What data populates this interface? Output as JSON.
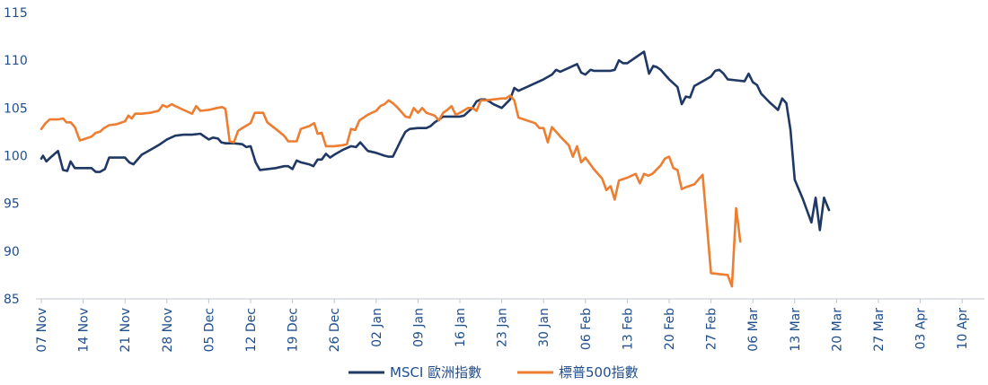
{
  "chart_data": {
    "type": "line",
    "title": "",
    "xlabel": "",
    "ylabel": "",
    "ylim": [
      85,
      115
    ],
    "yticks": [
      85,
      90,
      95,
      100,
      105,
      110,
      115
    ],
    "grid": false,
    "legend_position": "bottom-center",
    "x_tick_labels": [
      "07 Nov",
      "14 Nov",
      "21 Nov",
      "28 Nov",
      "05 Dec",
      "12 Dec",
      "19 Dec",
      "26 Dec",
      "02 Jan",
      "09 Jan",
      "16 Jan",
      "23 Jan",
      "30 Jan",
      "06 Feb",
      "13 Feb",
      "20 Feb",
      "27 Feb",
      "06 Mar",
      "13 Mar",
      "20 Mar",
      "27 Mar",
      "03 Apr",
      "10 Apr"
    ],
    "series": [
      {
        "name": "MSCI 歐洲指數",
        "color": "#1f3864",
        "points": [
          [
            0,
            99.7
          ],
          [
            0.2,
            100.0
          ],
          [
            0.6,
            99.4
          ],
          [
            1.2,
            99.9
          ],
          [
            2.0,
            100.5
          ],
          [
            2.6,
            98.5
          ],
          [
            3.1,
            98.4
          ],
          [
            3.5,
            99.4
          ],
          [
            4.0,
            98.7
          ],
          [
            5.0,
            98.7
          ],
          [
            6.0,
            98.7
          ],
          [
            6.5,
            98.3
          ],
          [
            7.0,
            98.3
          ],
          [
            7.6,
            98.6
          ],
          [
            8.1,
            99.8
          ],
          [
            8.9,
            99.8
          ],
          [
            10.0,
            99.8
          ],
          [
            10.5,
            99.3
          ],
          [
            11.0,
            99.1
          ],
          [
            12.0,
            100.1
          ],
          [
            13.0,
            100.6
          ],
          [
            14.0,
            101.1
          ],
          [
            15.0,
            101.7
          ],
          [
            16.0,
            102.1
          ],
          [
            17.0,
            102.2
          ],
          [
            18.0,
            102.2
          ],
          [
            19.0,
            102.3
          ],
          [
            20.0,
            101.7
          ],
          [
            20.5,
            101.9
          ],
          [
            21.1,
            101.8
          ],
          [
            21.5,
            101.4
          ],
          [
            22.0,
            101.3
          ],
          [
            23.0,
            101.3
          ],
          [
            24.0,
            101.2
          ],
          [
            24.5,
            100.9
          ],
          [
            25.0,
            101.0
          ],
          [
            25.6,
            99.3
          ],
          [
            26.1,
            98.5
          ],
          [
            27.0,
            98.6
          ],
          [
            28.0,
            98.7
          ],
          [
            29.0,
            98.9
          ],
          [
            29.5,
            98.9
          ],
          [
            30.0,
            98.6
          ],
          [
            30.5,
            99.5
          ],
          [
            31.0,
            99.3
          ],
          [
            32.0,
            99.1
          ],
          [
            32.5,
            98.9
          ],
          [
            33.0,
            99.6
          ],
          [
            33.5,
            99.6
          ],
          [
            34.0,
            100.2
          ],
          [
            34.5,
            99.8
          ],
          [
            35.0,
            100.1
          ],
          [
            36.0,
            100.6
          ],
          [
            37.0,
            101.0
          ],
          [
            37.6,
            100.9
          ],
          [
            38.1,
            101.4
          ],
          [
            39.0,
            100.5
          ],
          [
            40.0,
            100.3
          ],
          [
            41.0,
            100.0
          ],
          [
            41.5,
            99.9
          ],
          [
            42.0,
            99.9
          ],
          [
            43.0,
            101.7
          ],
          [
            43.5,
            102.5
          ],
          [
            44.0,
            102.8
          ],
          [
            45.0,
            102.9
          ],
          [
            46.0,
            102.9
          ],
          [
            46.5,
            103.1
          ],
          [
            47.0,
            103.5
          ],
          [
            48.0,
            104.1
          ],
          [
            49.0,
            104.1
          ],
          [
            50.0,
            104.1
          ],
          [
            50.5,
            104.2
          ],
          [
            51.0,
            104.6
          ],
          [
            51.5,
            105.0
          ],
          [
            52.0,
            105.7
          ],
          [
            52.5,
            105.9
          ],
          [
            53.0,
            105.9
          ],
          [
            53.5,
            105.7
          ],
          [
            54.0,
            105.4
          ],
          [
            55.0,
            105.0
          ],
          [
            56.0,
            105.9
          ],
          [
            56.5,
            107.1
          ],
          [
            57.0,
            106.8
          ],
          [
            58.0,
            107.2
          ],
          [
            59.0,
            107.6
          ],
          [
            60.0,
            108.0
          ],
          [
            61.0,
            108.5
          ],
          [
            61.5,
            109.0
          ],
          [
            62.0,
            108.8
          ],
          [
            63.0,
            109.2
          ],
          [
            64.0,
            109.6
          ],
          [
            64.5,
            108.7
          ],
          [
            65.0,
            108.5
          ],
          [
            65.6,
            109.0
          ],
          [
            66.0,
            108.9
          ],
          [
            67.0,
            108.9
          ],
          [
            68.0,
            108.9
          ],
          [
            68.5,
            109.0
          ],
          [
            69.0,
            110.0
          ],
          [
            69.5,
            109.7
          ],
          [
            70.0,
            109.7
          ],
          [
            71.0,
            110.3
          ],
          [
            72.0,
            110.9
          ],
          [
            72.6,
            108.6
          ],
          [
            73.1,
            109.4
          ],
          [
            73.5,
            109.3
          ],
          [
            74.0,
            109.0
          ],
          [
            74.5,
            108.5
          ],
          [
            75.0,
            108.0
          ],
          [
            76.0,
            107.2
          ],
          [
            76.5,
            105.4
          ],
          [
            77.0,
            106.2
          ],
          [
            77.5,
            106.1
          ],
          [
            78.0,
            107.3
          ],
          [
            79.0,
            107.8
          ],
          [
            80.0,
            108.3
          ],
          [
            80.5,
            108.9
          ],
          [
            81.0,
            109.0
          ],
          [
            81.5,
            108.6
          ],
          [
            82.0,
            108.0
          ],
          [
            83.0,
            107.9
          ],
          [
            84.0,
            107.8
          ],
          [
            84.5,
            108.6
          ],
          [
            85.0,
            107.7
          ],
          [
            85.5,
            107.4
          ],
          [
            86.0,
            106.5
          ],
          [
            87.0,
            105.6
          ],
          [
            87.5,
            105.2
          ],
          [
            88.0,
            104.8
          ],
          [
            88.5,
            106.0
          ],
          [
            89.0,
            105.5
          ],
          [
            89.5,
            102.7
          ],
          [
            90.0,
            97.5
          ],
          [
            91.0,
            95.4
          ],
          [
            92.0,
            93.0
          ],
          [
            92.5,
            95.6
          ],
          [
            93.0,
            92.2
          ],
          [
            93.5,
            95.6
          ],
          [
            94.1,
            94.3
          ]
        ]
      },
      {
        "name": "標普500指數",
        "color": "#ed7d31",
        "points": [
          [
            0,
            102.8
          ],
          [
            0.5,
            103.4
          ],
          [
            1.0,
            103.8
          ],
          [
            2.0,
            103.8
          ],
          [
            2.6,
            103.9
          ],
          [
            3.0,
            103.5
          ],
          [
            3.5,
            103.5
          ],
          [
            4.0,
            103.0
          ],
          [
            4.6,
            101.6
          ],
          [
            5.0,
            101.7
          ],
          [
            6.0,
            102.0
          ],
          [
            6.5,
            102.4
          ],
          [
            7.0,
            102.5
          ],
          [
            7.5,
            102.9
          ],
          [
            8.1,
            103.2
          ],
          [
            9.0,
            103.3
          ],
          [
            10.0,
            103.6
          ],
          [
            10.4,
            104.2
          ],
          [
            10.8,
            103.9
          ],
          [
            11.2,
            104.4
          ],
          [
            12.0,
            104.4
          ],
          [
            13.0,
            104.5
          ],
          [
            14.0,
            104.7
          ],
          [
            14.5,
            105.3
          ],
          [
            15.0,
            105.1
          ],
          [
            15.6,
            105.4
          ],
          [
            16.0,
            105.2
          ],
          [
            17.0,
            104.8
          ],
          [
            18.0,
            104.4
          ],
          [
            18.5,
            105.2
          ],
          [
            19.0,
            104.7
          ],
          [
            20.0,
            104.8
          ],
          [
            21.0,
            105.0
          ],
          [
            21.6,
            105.1
          ],
          [
            22.0,
            104.9
          ],
          [
            22.5,
            101.5
          ],
          [
            23.0,
            101.4
          ],
          [
            23.5,
            102.6
          ],
          [
            24.0,
            102.9
          ],
          [
            25.0,
            103.4
          ],
          [
            25.5,
            104.5
          ],
          [
            26.0,
            104.5
          ],
          [
            26.5,
            104.5
          ],
          [
            27.0,
            103.5
          ],
          [
            28.0,
            102.8
          ],
          [
            29.0,
            102.1
          ],
          [
            29.5,
            101.5
          ],
          [
            30.0,
            101.5
          ],
          [
            30.5,
            101.5
          ],
          [
            31.0,
            102.8
          ],
          [
            32.0,
            103.1
          ],
          [
            32.6,
            103.4
          ],
          [
            33.0,
            102.3
          ],
          [
            33.5,
            102.4
          ],
          [
            34.0,
            101.0
          ],
          [
            35.0,
            101.0
          ],
          [
            36.0,
            101.1
          ],
          [
            36.5,
            101.2
          ],
          [
            37.0,
            102.8
          ],
          [
            37.5,
            102.7
          ],
          [
            38.0,
            103.7
          ],
          [
            39.0,
            104.3
          ],
          [
            40.0,
            104.7
          ],
          [
            40.5,
            105.2
          ],
          [
            41.0,
            105.4
          ],
          [
            41.5,
            105.8
          ],
          [
            42.0,
            105.5
          ],
          [
            42.5,
            105.1
          ],
          [
            43.0,
            104.6
          ],
          [
            43.5,
            104.1
          ],
          [
            44.0,
            104.0
          ],
          [
            44.5,
            105.0
          ],
          [
            45.0,
            104.5
          ],
          [
            45.5,
            105.0
          ],
          [
            46.0,
            104.5
          ],
          [
            47.0,
            104.2
          ],
          [
            47.5,
            103.7
          ],
          [
            48.0,
            104.5
          ],
          [
            48.5,
            104.8
          ],
          [
            49.0,
            105.2
          ],
          [
            49.5,
            104.3
          ],
          [
            50.0,
            104.5
          ],
          [
            51.0,
            105.0
          ],
          [
            51.5,
            105.0
          ],
          [
            52.0,
            104.7
          ],
          [
            52.5,
            105.8
          ],
          [
            53.0,
            105.8
          ],
          [
            54.0,
            105.9
          ],
          [
            55.0,
            106.0
          ],
          [
            55.5,
            106.0
          ],
          [
            56.0,
            106.3
          ],
          [
            56.5,
            105.8
          ],
          [
            57.0,
            104.0
          ],
          [
            58.0,
            103.7
          ],
          [
            59.0,
            103.4
          ],
          [
            59.5,
            102.9
          ],
          [
            60.0,
            102.9
          ],
          [
            60.5,
            101.4
          ],
          [
            61.0,
            103.0
          ],
          [
            61.5,
            102.5
          ],
          [
            62.0,
            102.0
          ],
          [
            63.0,
            101.1
          ],
          [
            63.5,
            99.9
          ],
          [
            64.0,
            101.0
          ],
          [
            64.5,
            99.3
          ],
          [
            65.0,
            99.8
          ],
          [
            66.0,
            98.6
          ],
          [
            67.0,
            97.6
          ],
          [
            67.5,
            96.4
          ],
          [
            68.0,
            96.8
          ],
          [
            68.5,
            95.4
          ],
          [
            69.0,
            97.4
          ],
          [
            70.0,
            97.7
          ],
          [
            71.0,
            98.1
          ],
          [
            71.5,
            97.1
          ],
          [
            72.0,
            98.1
          ],
          [
            72.5,
            97.9
          ],
          [
            73.0,
            98.1
          ],
          [
            74.0,
            99.0
          ],
          [
            74.5,
            99.7
          ],
          [
            75.0,
            99.9
          ],
          [
            75.5,
            98.7
          ],
          [
            76.0,
            98.5
          ],
          [
            76.5,
            96.5
          ],
          [
            77.0,
            96.7
          ],
          [
            78.0,
            97.0
          ],
          [
            79.0,
            98.0
          ],
          [
            80.0,
            87.7
          ],
          [
            81.0,
            87.6
          ],
          [
            82.0,
            87.5
          ],
          [
            82.5,
            86.3
          ],
          [
            83.0,
            94.5
          ],
          [
            83.5,
            91.0
          ]
        ]
      }
    ]
  }
}
